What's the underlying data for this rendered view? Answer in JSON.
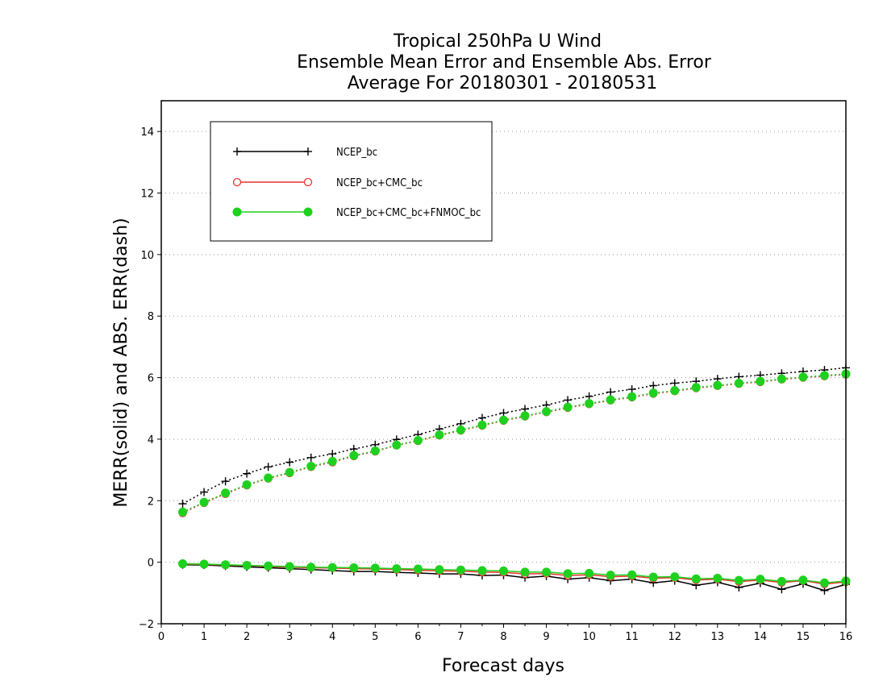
{
  "chart_data": {
    "type": "line",
    "title": [
      "Tropical 250hPa U Wind",
      "Ensemble Mean Error and Ensemble Abs. Error",
      "Average For 20180301 - 20180531"
    ],
    "xlabel": "Forecast days",
    "ylabel": "MERR(solid) and ABS. ERR(dash)",
    "xlim": [
      0,
      16
    ],
    "ylim": [
      -2,
      15
    ],
    "xticks": [
      0,
      1,
      2,
      3,
      4,
      5,
      6,
      7,
      8,
      9,
      10,
      11,
      12,
      13,
      14,
      15,
      16
    ],
    "yticks": [
      -2,
      0,
      2,
      4,
      6,
      8,
      10,
      12,
      14
    ],
    "grid": "horizontal-dotted",
    "legend": "top-left",
    "x": [
      0.5,
      1,
      1.5,
      2,
      2.5,
      3,
      3.5,
      4,
      4.5,
      5,
      5.5,
      6,
      6.5,
      7,
      7.5,
      8,
      8.5,
      9,
      9.5,
      10,
      10.5,
      11,
      11.5,
      12,
      12.5,
      13,
      13.5,
      14,
      14.5,
      15,
      15.5,
      16
    ],
    "series": [
      {
        "name": "NCEP_bc",
        "color": "#000000",
        "marker": "plus",
        "abs_err": [
          1.9,
          2.28,
          2.63,
          2.88,
          3.1,
          3.25,
          3.4,
          3.52,
          3.68,
          3.82,
          3.99,
          4.15,
          4.33,
          4.5,
          4.69,
          4.85,
          4.98,
          5.11,
          5.27,
          5.39,
          5.53,
          5.62,
          5.74,
          5.82,
          5.88,
          5.96,
          6.03,
          6.08,
          6.14,
          6.2,
          6.25,
          6.32
        ],
        "mean_err": [
          -0.08,
          -0.09,
          -0.12,
          -0.15,
          -0.18,
          -0.21,
          -0.24,
          -0.27,
          -0.3,
          -0.3,
          -0.33,
          -0.35,
          -0.38,
          -0.38,
          -0.43,
          -0.42,
          -0.5,
          -0.45,
          -0.55,
          -0.5,
          -0.6,
          -0.55,
          -0.67,
          -0.6,
          -0.75,
          -0.65,
          -0.82,
          -0.68,
          -0.88,
          -0.7,
          -0.92,
          -0.72
        ]
      },
      {
        "name": "NCEP_bc+CMC_bc",
        "color": "#e8332f",
        "marker": "open-circle",
        "abs_err": [
          1.6,
          1.93,
          2.22,
          2.5,
          2.72,
          2.9,
          3.1,
          3.25,
          3.45,
          3.6,
          3.8,
          3.94,
          4.12,
          4.28,
          4.44,
          4.6,
          4.74,
          4.88,
          5.02,
          5.14,
          5.26,
          5.36,
          5.48,
          5.56,
          5.66,
          5.73,
          5.8,
          5.86,
          5.94,
          6.0,
          6.05,
          6.1
        ],
        "mean_err": [
          -0.06,
          -0.07,
          -0.09,
          -0.11,
          -0.14,
          -0.16,
          -0.18,
          -0.19,
          -0.21,
          -0.22,
          -0.24,
          -0.26,
          -0.28,
          -0.29,
          -0.32,
          -0.33,
          -0.38,
          -0.37,
          -0.43,
          -0.41,
          -0.47,
          -0.45,
          -0.52,
          -0.5,
          -0.58,
          -0.55,
          -0.63,
          -0.58,
          -0.66,
          -0.6,
          -0.71,
          -0.64
        ]
      },
      {
        "name": "NCEP_bc+CMC_bc+FNMOC_bc",
        "color": "#1fd11f",
        "marker": "filled-circle",
        "abs_err": [
          1.63,
          1.95,
          2.25,
          2.52,
          2.74,
          2.92,
          3.12,
          3.28,
          3.47,
          3.62,
          3.81,
          3.96,
          4.14,
          4.3,
          4.46,
          4.62,
          4.76,
          4.9,
          5.04,
          5.16,
          5.28,
          5.38,
          5.5,
          5.58,
          5.68,
          5.75,
          5.82,
          5.88,
          5.96,
          6.02,
          6.07,
          6.12
        ],
        "mean_err": [
          -0.05,
          -0.06,
          -0.08,
          -0.1,
          -0.12,
          -0.14,
          -0.16,
          -0.17,
          -0.18,
          -0.19,
          -0.21,
          -0.22,
          -0.24,
          -0.25,
          -0.27,
          -0.28,
          -0.32,
          -0.32,
          -0.37,
          -0.36,
          -0.42,
          -0.41,
          -0.48,
          -0.47,
          -0.54,
          -0.52,
          -0.59,
          -0.55,
          -0.62,
          -0.58,
          -0.67,
          -0.61
        ]
      }
    ]
  }
}
